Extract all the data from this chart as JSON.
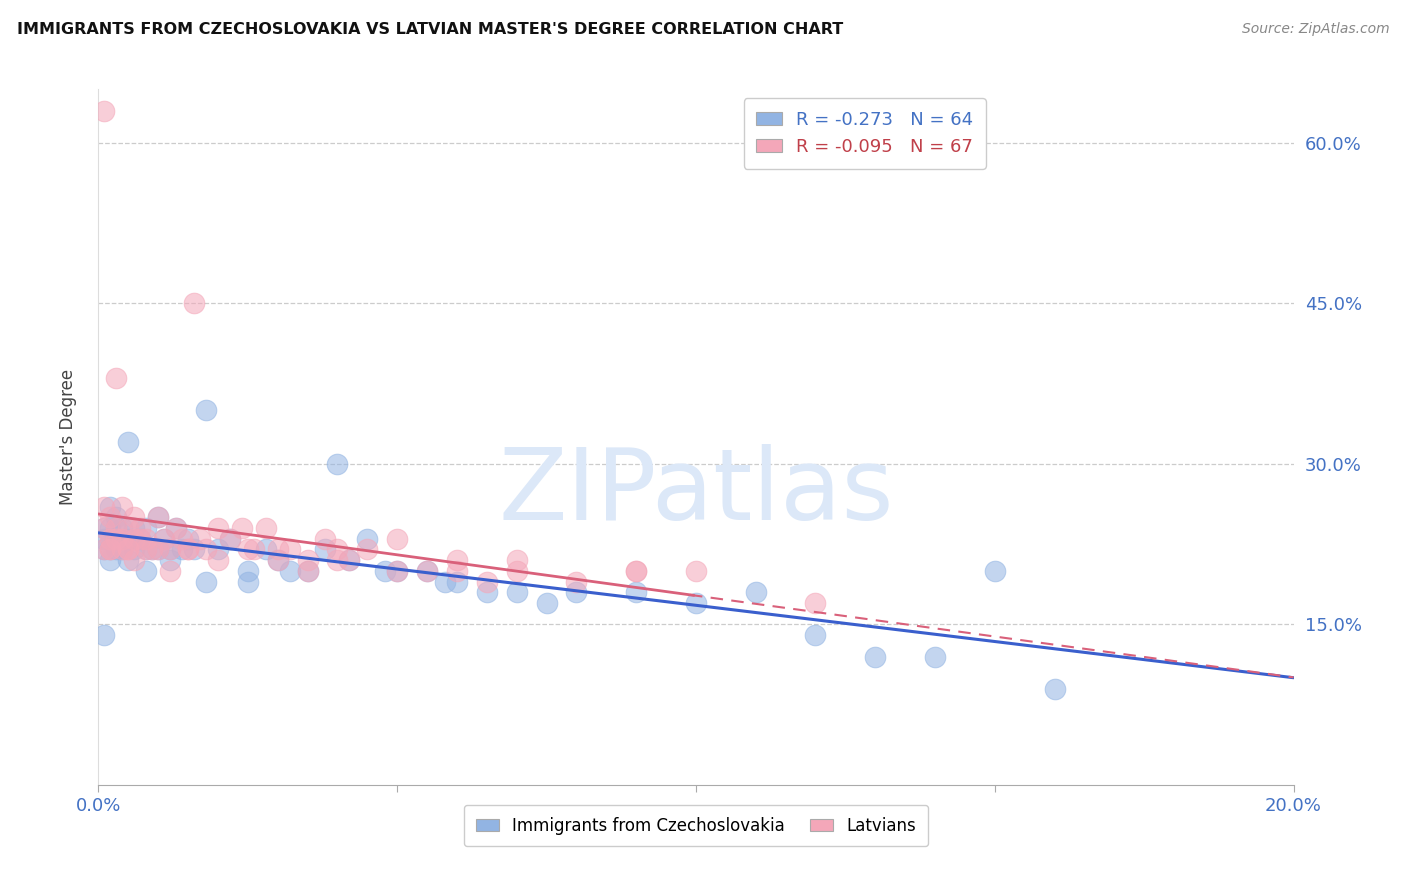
{
  "title": "IMMIGRANTS FROM CZECHOSLOVAKIA VS LATVIAN MASTER'S DEGREE CORRELATION CHART",
  "source": "Source: ZipAtlas.com",
  "ylabel": "Master's Degree",
  "xlim": [
    0.0,
    0.2
  ],
  "ylim": [
    0.0,
    0.65
  ],
  "xtick_vals": [
    0.0,
    0.05,
    0.1,
    0.15,
    0.2
  ],
  "xtick_labels": [
    "0.0%",
    "",
    "",
    "",
    "20.0%"
  ],
  "ytick_right_vals": [
    0.15,
    0.3,
    0.45,
    0.6
  ],
  "ytick_right_labels": [
    "15.0%",
    "30.0%",
    "45.0%",
    "60.0%"
  ],
  "blue_label": "Immigrants from Czechoslovakia",
  "pink_label": "Latvians",
  "blue_R": -0.273,
  "blue_N": 64,
  "pink_R": -0.095,
  "pink_N": 67,
  "blue_color": "#92b4e3",
  "pink_color": "#f4a7b9",
  "blue_line_color": "#3a5fcd",
  "pink_line_color": "#d9607a",
  "watermark": "ZIPatlas",
  "watermark_color": "#dce8f8",
  "background_color": "#ffffff",
  "grid_color": "#cccccc",
  "blue_scatter_x": [
    0.001,
    0.001,
    0.001,
    0.002,
    0.002,
    0.002,
    0.002,
    0.003,
    0.003,
    0.003,
    0.004,
    0.004,
    0.005,
    0.005,
    0.006,
    0.006,
    0.007,
    0.008,
    0.008,
    0.009,
    0.01,
    0.01,
    0.011,
    0.012,
    0.013,
    0.014,
    0.015,
    0.016,
    0.018,
    0.02,
    0.022,
    0.025,
    0.028,
    0.03,
    0.032,
    0.035,
    0.038,
    0.04,
    0.042,
    0.045,
    0.048,
    0.05,
    0.055,
    0.058,
    0.06,
    0.065,
    0.07,
    0.075,
    0.08,
    0.09,
    0.1,
    0.11,
    0.12,
    0.13,
    0.14,
    0.15,
    0.001,
    0.003,
    0.005,
    0.008,
    0.012,
    0.018,
    0.025,
    0.16
  ],
  "blue_scatter_y": [
    0.24,
    0.23,
    0.22,
    0.26,
    0.24,
    0.22,
    0.21,
    0.25,
    0.23,
    0.22,
    0.24,
    0.22,
    0.23,
    0.21,
    0.24,
    0.22,
    0.23,
    0.22,
    0.24,
    0.22,
    0.25,
    0.22,
    0.23,
    0.22,
    0.24,
    0.22,
    0.23,
    0.22,
    0.35,
    0.22,
    0.23,
    0.2,
    0.22,
    0.21,
    0.2,
    0.2,
    0.22,
    0.3,
    0.21,
    0.23,
    0.2,
    0.2,
    0.2,
    0.19,
    0.19,
    0.18,
    0.18,
    0.17,
    0.18,
    0.18,
    0.17,
    0.18,
    0.14,
    0.12,
    0.12,
    0.2,
    0.14,
    0.24,
    0.32,
    0.2,
    0.21,
    0.19,
    0.19,
    0.09
  ],
  "pink_scatter_x": [
    0.001,
    0.001,
    0.001,
    0.002,
    0.002,
    0.002,
    0.003,
    0.003,
    0.004,
    0.004,
    0.005,
    0.005,
    0.006,
    0.006,
    0.007,
    0.008,
    0.009,
    0.01,
    0.011,
    0.012,
    0.013,
    0.014,
    0.015,
    0.016,
    0.017,
    0.018,
    0.02,
    0.022,
    0.024,
    0.026,
    0.028,
    0.03,
    0.032,
    0.035,
    0.038,
    0.04,
    0.042,
    0.045,
    0.05,
    0.055,
    0.06,
    0.065,
    0.07,
    0.08,
    0.09,
    0.1,
    0.001,
    0.002,
    0.003,
    0.004,
    0.005,
    0.006,
    0.007,
    0.008,
    0.01,
    0.012,
    0.015,
    0.02,
    0.025,
    0.03,
    0.035,
    0.04,
    0.05,
    0.06,
    0.07,
    0.09,
    0.12
  ],
  "pink_scatter_y": [
    0.63,
    0.26,
    0.24,
    0.25,
    0.23,
    0.22,
    0.38,
    0.24,
    0.26,
    0.23,
    0.24,
    0.22,
    0.25,
    0.23,
    0.24,
    0.23,
    0.22,
    0.25,
    0.23,
    0.22,
    0.24,
    0.23,
    0.22,
    0.45,
    0.23,
    0.22,
    0.24,
    0.23,
    0.24,
    0.22,
    0.24,
    0.22,
    0.22,
    0.21,
    0.23,
    0.22,
    0.21,
    0.22,
    0.2,
    0.2,
    0.2,
    0.19,
    0.2,
    0.19,
    0.2,
    0.2,
    0.22,
    0.22,
    0.23,
    0.22,
    0.22,
    0.21,
    0.23,
    0.22,
    0.22,
    0.2,
    0.22,
    0.21,
    0.22,
    0.21,
    0.2,
    0.21,
    0.23,
    0.21,
    0.21,
    0.2,
    0.17
  ]
}
